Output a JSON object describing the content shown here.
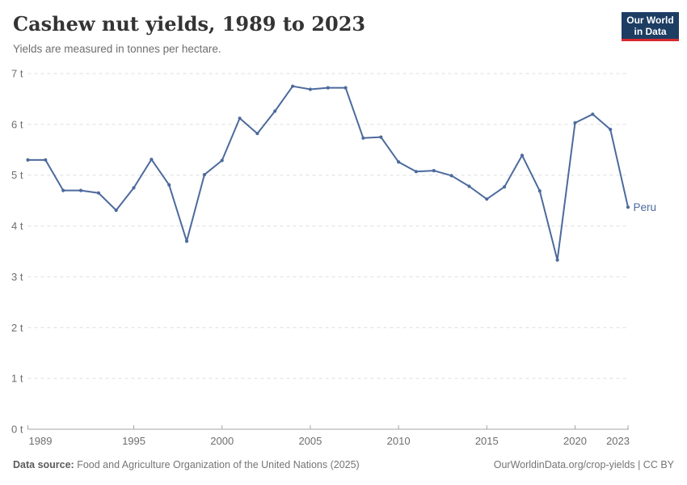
{
  "header": {
    "title": "Cashew nut yields, 1989 to 2023",
    "subtitle": "Yields are measured in tonnes per hectare.",
    "logo": {
      "line1": "Our World",
      "line2": "in Data",
      "bg_color": "#1d3d63",
      "accent_color": "#d8292f"
    }
  },
  "chart_data": {
    "type": "line",
    "title": "Cashew nut yields, 1989 to 2023",
    "xlabel": "",
    "ylabel": "tonnes per hectare",
    "xlim": [
      1989,
      2023
    ],
    "ylim": [
      0,
      7
    ],
    "grid": "horizontal-dashed",
    "legend_position": "end-of-line",
    "x_ticks": [
      1989,
      1995,
      2000,
      2005,
      2010,
      2015,
      2020,
      2023
    ],
    "y_ticks": [
      0,
      1,
      2,
      3,
      4,
      5,
      6,
      7
    ],
    "y_tick_suffix": " t",
    "series": [
      {
        "name": "Peru",
        "color": "#4C6A9C",
        "x": [
          1989,
          1990,
          1991,
          1992,
          1993,
          1994,
          1995,
          1996,
          1997,
          1998,
          1999,
          2000,
          2001,
          2002,
          2003,
          2004,
          2005,
          2006,
          2007,
          2008,
          2009,
          2010,
          2011,
          2012,
          2013,
          2014,
          2015,
          2016,
          2017,
          2018,
          2019,
          2020,
          2021,
          2022,
          2023
        ],
        "values": [
          5.3,
          5.3,
          4.7,
          4.7,
          4.65,
          4.31,
          4.75,
          5.31,
          4.81,
          3.7,
          5.01,
          5.29,
          6.12,
          5.82,
          6.26,
          6.75,
          6.69,
          6.72,
          6.72,
          5.73,
          5.75,
          5.26,
          5.07,
          5.09,
          4.99,
          4.78,
          4.53,
          4.77,
          5.39,
          4.69,
          3.33,
          6.03,
          6.2,
          5.9,
          4.37
        ]
      }
    ],
    "axis_color": "#a5a5a5",
    "grid_color": "#dedede",
    "tick_label_color": "#6e6e6e"
  },
  "footer": {
    "source_label": "Data source:",
    "source_text": " Food and Agriculture Organization of the United Nations (2025)",
    "url": "OurWorldinData.org/crop-yields",
    "separator": " | ",
    "license": "CC BY"
  }
}
